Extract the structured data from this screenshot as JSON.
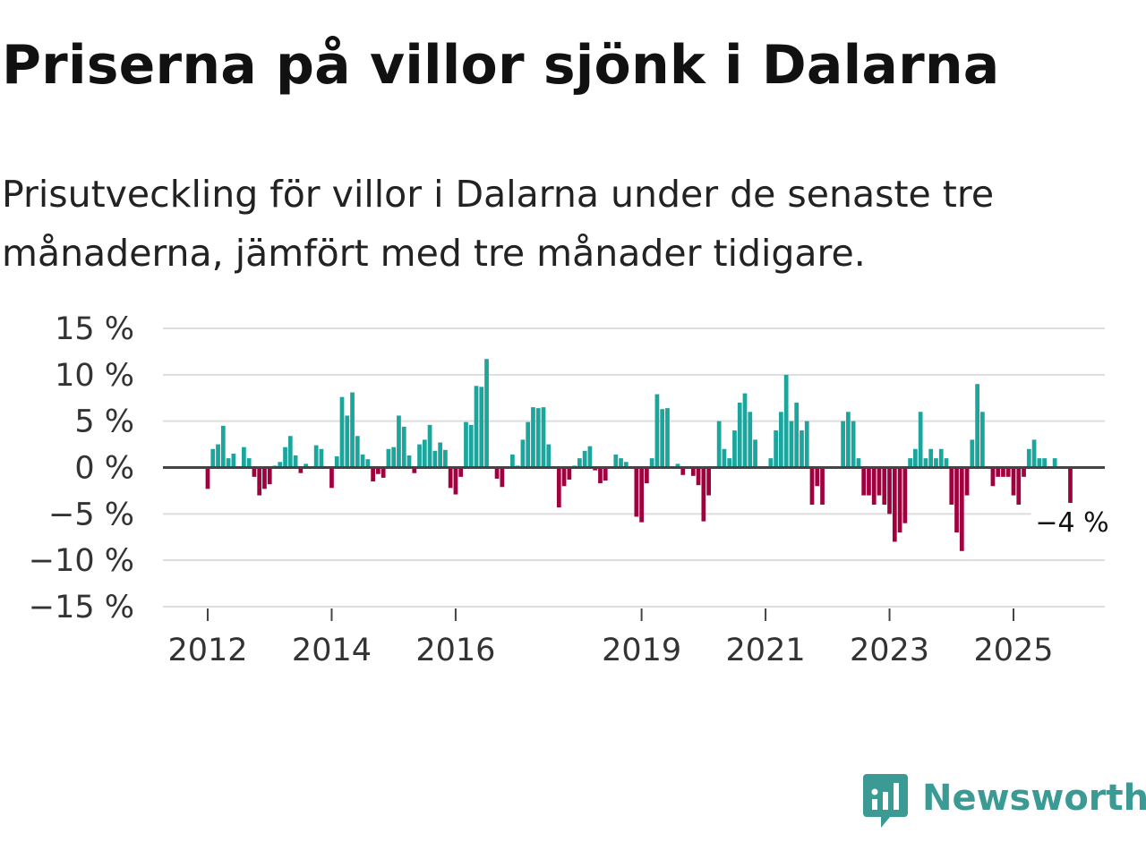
{
  "title": "Priserna på villor sjönk i Dalarna",
  "subtitle": "Prisutveckling för villor i Dalarna under de senaste tre månaderna, jämfört med tre månader tidigare.",
  "brand": {
    "name": "Newsworthy",
    "color": "#3b9b94",
    "icon": "newsworthy-logo-icon"
  },
  "colors": {
    "positive": "#1aa59d",
    "negative": "#a1003f",
    "grid": "#dddddd",
    "zero": "#444444"
  },
  "chart_data": {
    "type": "bar",
    "title": "Priserna på villor sjönk i Dalarna",
    "ylabel": "",
    "xlabel": "",
    "ylim": [
      -15,
      15
    ],
    "yticks": [
      15,
      10,
      5,
      0,
      -5,
      -10,
      -15
    ],
    "ytick_labels": [
      "15 %",
      "10 %",
      "5 %",
      "0 %",
      "−5 %",
      "−10 %",
      "−15 %"
    ],
    "xticks": [
      2012,
      2014,
      2016,
      2019,
      2021,
      2023,
      2025
    ],
    "xtick_labels": [
      "2012",
      "2014",
      "2016",
      "2019",
      "2021",
      "2023",
      "2025"
    ],
    "start_month": "2012-01",
    "frequency": "monthly",
    "values": [
      -2.3,
      2.0,
      2.5,
      4.5,
      1.0,
      1.5,
      0.0,
      2.2,
      1.0,
      -1.0,
      -3.0,
      -2.3,
      -1.8,
      0.2,
      0.6,
      2.2,
      3.4,
      1.3,
      -0.6,
      0.4,
      0.0,
      2.4,
      2.0,
      0.0,
      -2.2,
      1.2,
      7.6,
      5.6,
      8.1,
      3.4,
      1.4,
      0.9,
      -1.5,
      -0.7,
      -1.1,
      2.0,
      2.2,
      5.6,
      4.4,
      1.3,
      -0.6,
      2.5,
      3.0,
      4.6,
      1.8,
      2.7,
      1.9,
      -2.2,
      -2.9,
      -1.0,
      4.9,
      4.6,
      8.8,
      8.7,
      11.7,
      0.0,
      -1.2,
      -2.1,
      0.1,
      1.4,
      0.2,
      3.0,
      4.9,
      6.5,
      6.4,
      6.5,
      2.5,
      0.1,
      -4.3,
      -2.0,
      -1.3,
      0.2,
      1.0,
      1.8,
      2.3,
      -0.3,
      -1.7,
      -1.4,
      0.0,
      1.4,
      1.0,
      0.6,
      0.0,
      -5.3,
      -5.9,
      -1.7,
      1.0,
      7.9,
      6.3,
      6.4,
      0.0,
      0.4,
      -0.8,
      0.0,
      -0.9,
      -1.9,
      -5.8,
      -3.0,
      0.0,
      5.0,
      2.0,
      1.0,
      4.0,
      7.0,
      8.0,
      6.0,
      3.0,
      0.0,
      0.0,
      1.0,
      4.0,
      6.0,
      10.0,
      5.0,
      7.0,
      4.0,
      5.0,
      -4.0,
      -2.0,
      -4.0,
      0.0,
      0.0,
      0.0,
      5.0,
      6.0,
      5.0,
      1.0,
      -3.0,
      -3.0,
      -4.0,
      -3.0,
      -4.0,
      -5.0,
      -8.0,
      -7.0,
      -6.0,
      1.0,
      2.0,
      6.0,
      1.0,
      2.0,
      1.0,
      2.0,
      1.0,
      -4.0,
      -7.0,
      -9.0,
      -3.0,
      3.0,
      9.0,
      6.0,
      0.0,
      -2.0,
      -1.0,
      -1.0,
      -1.0,
      -3.0,
      -4.0,
      -1.0,
      2.0,
      3.0,
      1.0,
      1.0,
      0.0,
      1.0,
      0.0,
      0.0,
      -4.0
    ],
    "annotation": {
      "text": "−4 %",
      "value": -4
    }
  }
}
